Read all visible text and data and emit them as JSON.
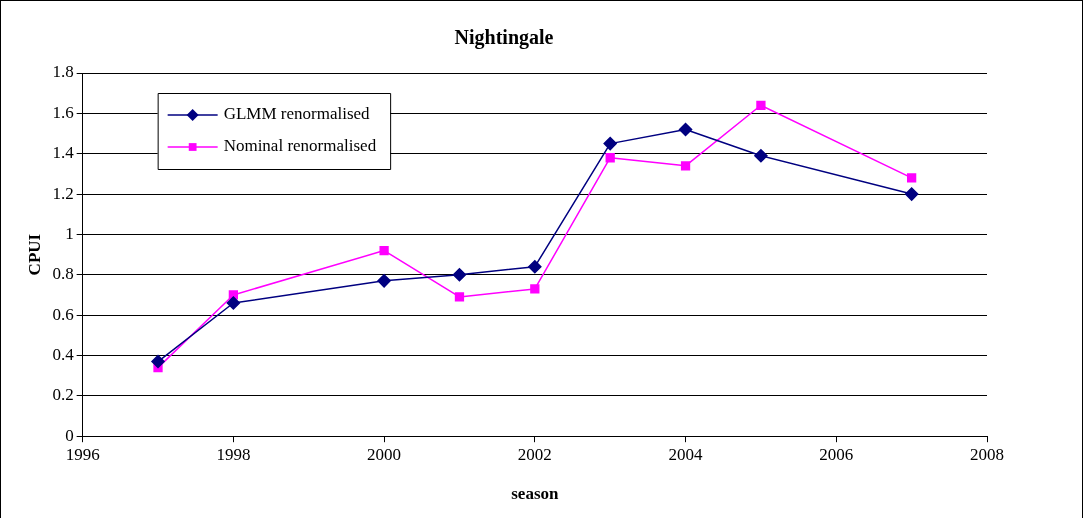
{
  "chart_data": {
    "type": "line",
    "title": "Nightingale",
    "xlabel": "season",
    "ylabel": "CPUI",
    "x": [
      1997,
      1998,
      2000,
      2001,
      2002,
      2003,
      2004,
      2005,
      2007
    ],
    "series": [
      {
        "name": "GLMM renormalised",
        "color": "#000080",
        "marker": "diamond",
        "values": [
          0.37,
          0.66,
          0.77,
          0.8,
          0.84,
          1.45,
          1.52,
          1.39,
          1.2
        ]
      },
      {
        "name": "Nominal renormalised",
        "color": "#ff00ff",
        "marker": "square",
        "values": [
          0.34,
          0.7,
          0.92,
          0.69,
          0.73,
          1.38,
          1.34,
          1.64,
          1.28
        ]
      }
    ],
    "xlim": [
      1996,
      2008
    ],
    "xticks": [
      1996,
      1998,
      2000,
      2002,
      2004,
      2006,
      2008
    ],
    "ylim": [
      0,
      1.8
    ],
    "yticks": [
      0,
      0.2,
      0.4,
      0.6,
      0.8,
      1,
      1.2,
      1.4,
      1.6,
      1.8
    ],
    "grid": "y",
    "legend": "top left"
  }
}
